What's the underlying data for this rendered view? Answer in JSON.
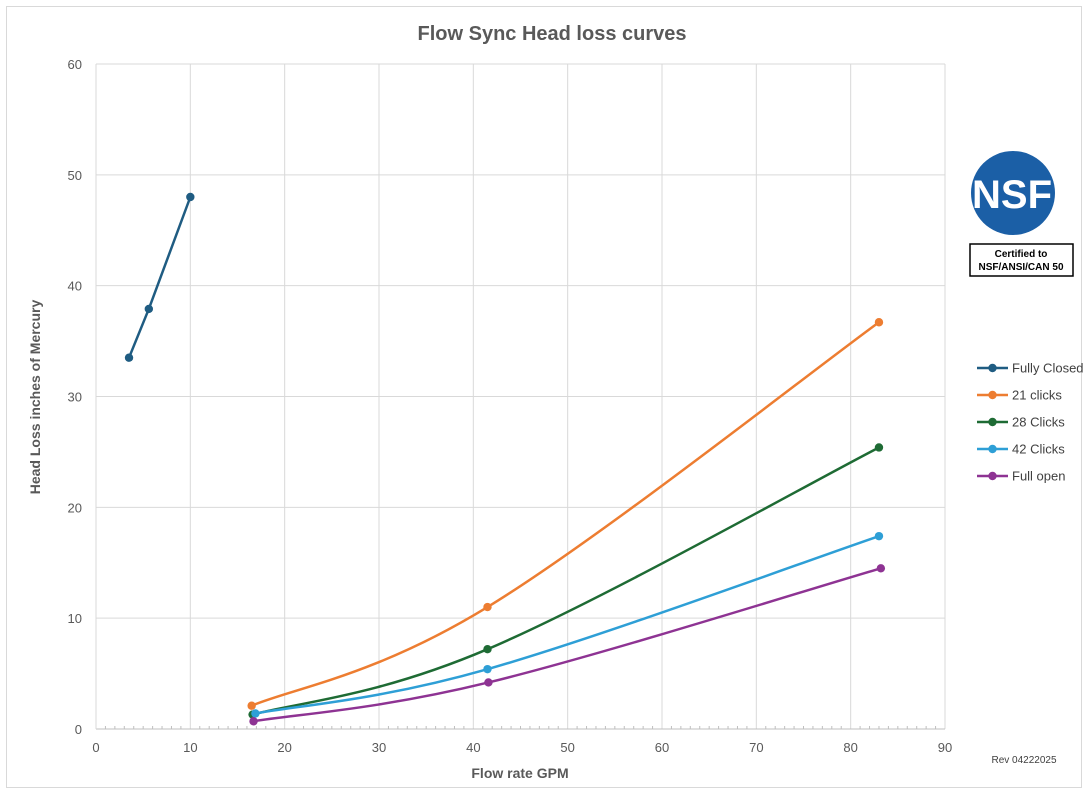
{
  "chart_data": {
    "type": "line",
    "title": "Flow Sync Head loss curves",
    "xlabel": "Flow rate GPM",
    "ylabel": "Head Loss inches of Mercury",
    "xlim": [
      0,
      90
    ],
    "ylim": [
      0,
      60
    ],
    "x_ticks": [
      "0",
      "10",
      "20",
      "30",
      "40",
      "50",
      "60",
      "70",
      "80",
      "90"
    ],
    "y_ticks": [
      "0",
      "10",
      "20",
      "30",
      "40",
      "50",
      "60"
    ],
    "grid": true,
    "legend_position": "right",
    "series": [
      {
        "name": "Fully Closed",
        "color": "#1f5c82",
        "x": [
          3.5,
          5.6,
          10.0
        ],
        "y": [
          33.5,
          37.9,
          48.0
        ]
      },
      {
        "name": "21 clicks",
        "color": "#ed7d31",
        "x": [
          16.5,
          41.5,
          83.0
        ],
        "y": [
          2.1,
          11.0,
          36.7
        ]
      },
      {
        "name": "28 Clicks",
        "color": "#1e6b34",
        "x": [
          16.6,
          41.5,
          83.0
        ],
        "y": [
          1.3,
          7.2,
          25.4
        ]
      },
      {
        "name": "42 Clicks",
        "color": "#2e9fd6",
        "x": [
          16.9,
          41.5,
          83.0
        ],
        "y": [
          1.4,
          5.4,
          17.4
        ]
      },
      {
        "name": "Full open",
        "color": "#8e3393",
        "x": [
          16.7,
          41.6,
          83.2
        ],
        "y": [
          0.7,
          4.2,
          14.5
        ]
      }
    ]
  },
  "badge": {
    "logo_text": "NSF",
    "logo_color": "#1b5fa6",
    "cert_line1": "Certified to",
    "cert_line2": "NSF/ANSI/CAN 50"
  },
  "revision": "Rev 04222025"
}
